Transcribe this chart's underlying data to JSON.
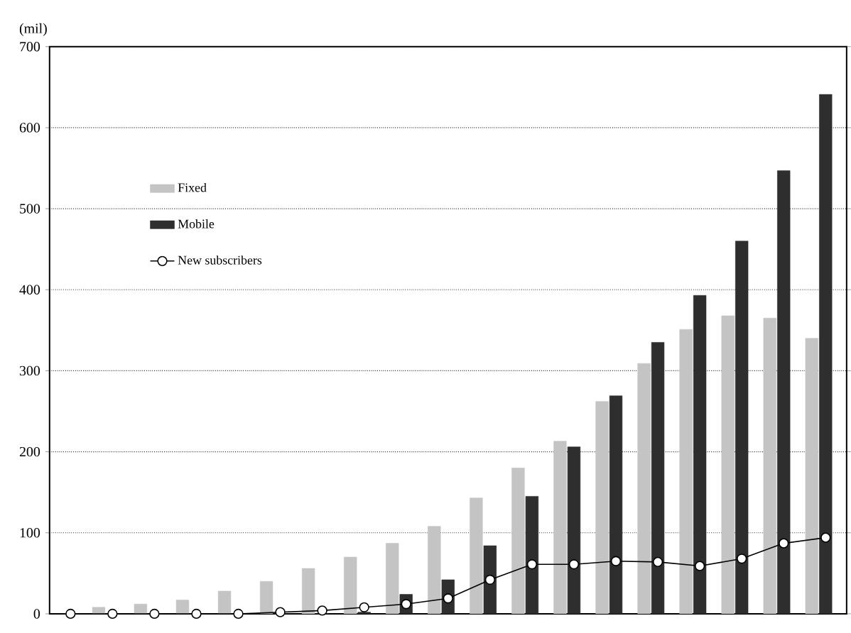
{
  "chart_data": {
    "type": "bar",
    "ylabel": "(mil)",
    "categories": [
      null,
      null,
      null,
      null,
      null,
      null,
      null,
      null,
      null,
      null,
      null,
      null,
      null,
      null,
      null,
      null,
      null,
      null,
      null
    ],
    "series": [
      {
        "name": "Fixed",
        "color": "#c4c4c4",
        "values": [
          null,
          8,
          12,
          17,
          28,
          40,
          56,
          70,
          87,
          108,
          143,
          180,
          213,
          262,
          309,
          351,
          368,
          365,
          340
        ]
      },
      {
        "name": "Mobile",
        "color": "#2e2e2e",
        "values": [
          0,
          0,
          0,
          0,
          0,
          0,
          0,
          2,
          24,
          42,
          84,
          145,
          206,
          269,
          335,
          393,
          460,
          547,
          641
        ]
      },
      {
        "name": "New subscribers",
        "type": "line",
        "color": "#000000",
        "marker": "circle",
        "values": [
          0,
          0,
          0,
          0,
          0,
          2,
          4,
          8,
          12,
          19,
          42,
          61,
          61,
          65,
          64,
          59,
          68,
          87,
          94
        ]
      }
    ],
    "ylim": [
      0,
      700
    ],
    "yticks": [
      0,
      100,
      200,
      300,
      400,
      500,
      600,
      700
    ],
    "grid": "y",
    "legend": "top left",
    "tick_labels": "y"
  }
}
